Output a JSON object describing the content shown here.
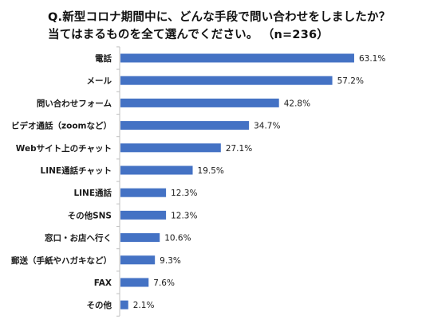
{
  "title": {
    "line1": "Q.新型コロナ期間中に、どんな手段で問い合わせをしましたか？",
    "line2": "当てはまるものを全て選んでください。 （n=236）"
  },
  "chart_data": {
    "type": "bar",
    "orientation": "horizontal",
    "title": "Q.新型コロナ期間中に、どんな手段で問い合わせをしましたか？ 当てはまるものを全て選んでください。 （n=236）",
    "categories": [
      "電話",
      "メール",
      "問い合わせフォーム",
      "ビデオ通話（zoomなど）",
      "Webサイト上のチャット",
      "LINE通話チャット",
      "LINE通話",
      "その他SNS",
      "窓口・お店へ行く",
      "郵送（手紙やハガキなど）",
      "FAX",
      "その他"
    ],
    "values": [
      63.1,
      57.2,
      42.8,
      34.7,
      27.1,
      19.5,
      12.3,
      12.3,
      10.6,
      9.3,
      7.6,
      2.1
    ],
    "value_labels": [
      "63.1%",
      "57.2%",
      "42.8%",
      "34.7%",
      "27.1%",
      "19.5%",
      "12.3%",
      "12.3%",
      "10.6%",
      "9.3%",
      "7.6%",
      "2.1%"
    ],
    "unit": "%",
    "xlim": [
      0,
      70
    ],
    "grid": false,
    "bar_color": "#4472C4",
    "axis_color": "#bfbfbf"
  }
}
